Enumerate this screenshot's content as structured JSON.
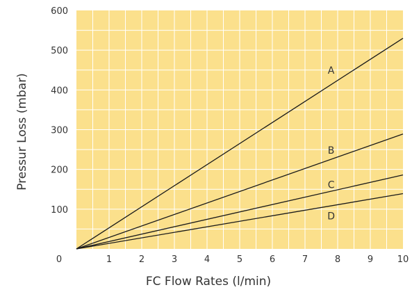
{
  "chart_data": {
    "type": "line",
    "title": "",
    "xlabel": "FC Flow Rates (l/min)",
    "ylabel": "Pressur Loss (mbar)",
    "xlim": [
      0,
      10
    ],
    "ylim": [
      0,
      600
    ],
    "x_ticks": [
      1,
      2,
      3,
      4,
      5,
      6,
      7,
      8,
      9,
      10
    ],
    "y_ticks": [
      100,
      200,
      300,
      400,
      500,
      600
    ],
    "origin_label": "0",
    "grid": true,
    "legend": "none",
    "colors": {
      "plot_background": "#fbe08c",
      "grid": "#ffffff",
      "line": "#1a1a1a",
      "text": "#333333"
    },
    "series": [
      {
        "name": "A",
        "x": [
          0,
          10
        ],
        "y": [
          0,
          530
        ],
        "label_x": 7.8,
        "label_y": 450
      },
      {
        "name": "B",
        "x": [
          0,
          10
        ],
        "y": [
          0,
          289
        ],
        "label_x": 7.8,
        "label_y": 248
      },
      {
        "name": "C",
        "x": [
          0,
          10
        ],
        "y": [
          0,
          186
        ],
        "label_x": 7.8,
        "label_y": 162
      },
      {
        "name": "D",
        "x": [
          0,
          10
        ],
        "y": [
          0,
          139
        ],
        "label_x": 7.8,
        "label_y": 83
      }
    ]
  }
}
